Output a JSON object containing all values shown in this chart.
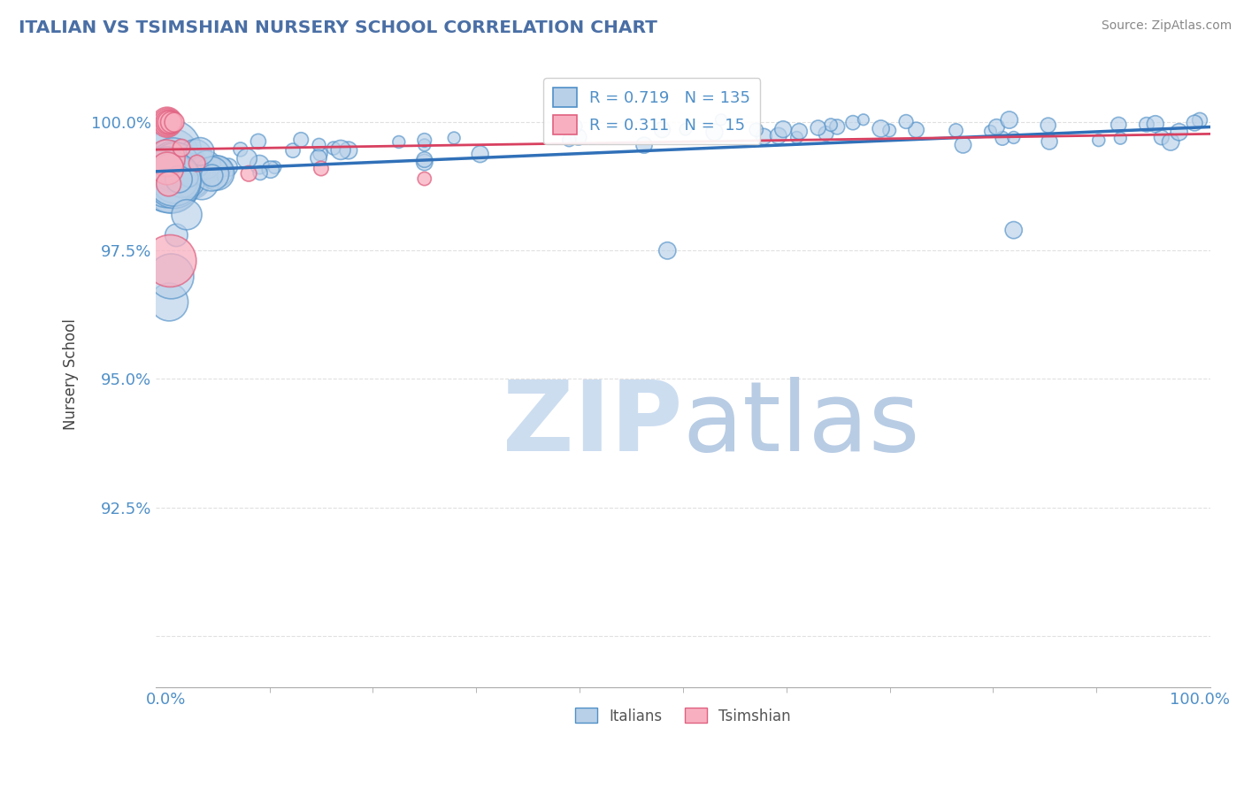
{
  "title": "ITALIAN VS TSIMSHIAN NURSERY SCHOOL CORRELATION CHART",
  "source": "Source: ZipAtlas.com",
  "ylabel": "Nursery School",
  "ylim": [
    89.0,
    101.2
  ],
  "xlim": [
    -1.0,
    101.0
  ],
  "yticks": [
    90.0,
    92.5,
    95.0,
    97.5,
    100.0
  ],
  "ytick_labels": [
    "",
    "92.5%",
    "95.0%",
    "97.5%",
    "100.0%"
  ],
  "xtick_labels": [
    "0.0%",
    "100.0%"
  ],
  "xtick_positions": [
    0.0,
    100.0
  ],
  "legend_blue_r": "R = 0.719",
  "legend_blue_n": "N = 135",
  "legend_pink_r": "R = 0.311",
  "legend_pink_n": "N =  15",
  "blue_face_color": "#b8d0e8",
  "blue_edge_color": "#5090c8",
  "pink_face_color": "#f8b0c0",
  "pink_edge_color": "#e06080",
  "blue_line_color": "#3070b8",
  "pink_line_color": "#d84060",
  "grid_color": "#cccccc",
  "title_color": "#4a6fa5",
  "axis_tick_color": "#5090c8",
  "ylabel_color": "#444444",
  "source_color": "#888888",
  "background_color": "#ffffff",
  "watermark_zip_color": "#ccddf0",
  "watermark_atlas_color": "#b8cce4"
}
